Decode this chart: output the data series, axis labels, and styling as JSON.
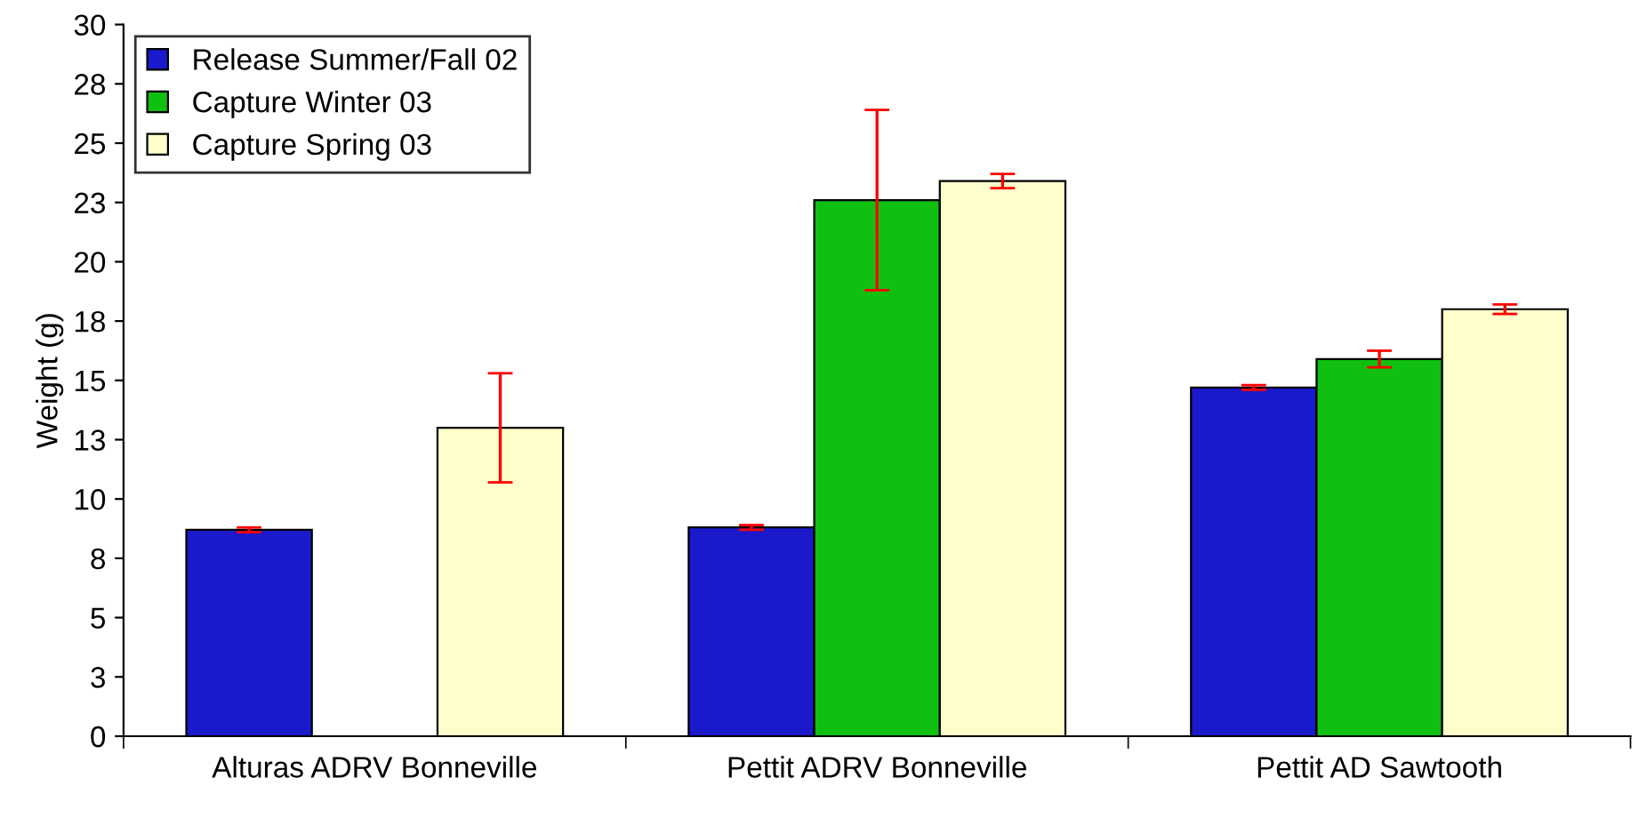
{
  "chart_data": {
    "type": "bar",
    "ylabel": "Weight (g)",
    "categories": [
      "Alturas ADRV Bonneville",
      "Pettit ADRV Bonneville",
      "Pettit AD Sawtooth"
    ],
    "series": [
      {
        "name": "Release Summer/Fall 02",
        "color": "#1a1acc",
        "values": [
          8.7,
          8.8,
          14.7
        ],
        "errors": [
          0.1,
          0.1,
          0.1
        ]
      },
      {
        "name": "Capture Winter 03",
        "color": "#10c010",
        "values": [
          null,
          22.6,
          15.9
        ],
        "errors": [
          null,
          3.8,
          0.35
        ]
      },
      {
        "name": "Capture Spring 03",
        "color": "#ffffcc",
        "values": [
          13.0,
          23.4,
          18.0
        ],
        "errors": [
          2.3,
          0.3,
          0.2
        ]
      }
    ],
    "ylim": [
      0,
      30
    ],
    "yticks": [
      0,
      {
        "value": 2.5,
        "label": "3"
      },
      5,
      {
        "value": 7.5,
        "label": "8"
      },
      10,
      {
        "value": 12.5,
        "label": "13"
      },
      15,
      {
        "value": 17.5,
        "label": "18"
      },
      20,
      {
        "value": 22.5,
        "label": "23"
      },
      25,
      {
        "value": 27.5,
        "label": "28"
      },
      30
    ],
    "legend": "top left",
    "grid": false
  }
}
